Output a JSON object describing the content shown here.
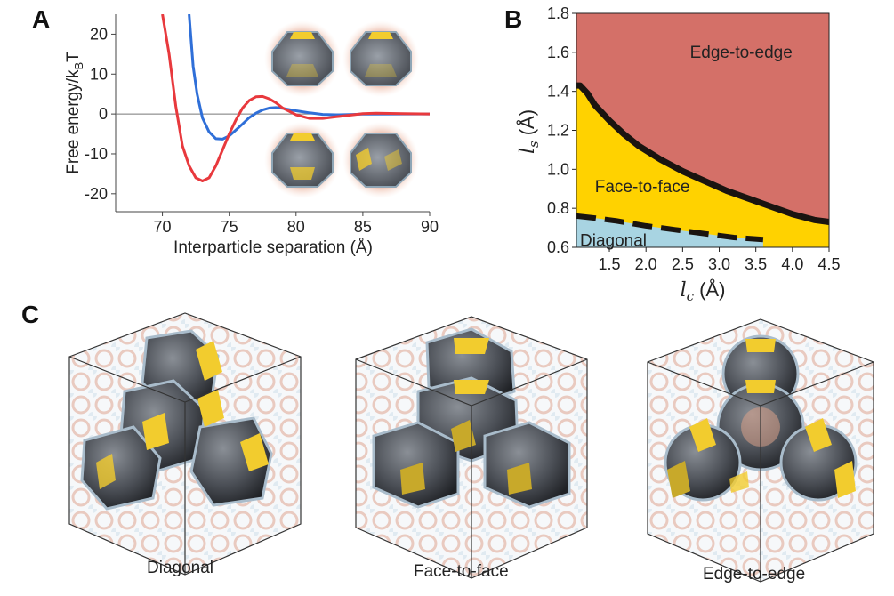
{
  "panels": {
    "a": "A",
    "b": "B",
    "c": "C"
  },
  "chart_data": [
    {
      "type": "line",
      "panel": "A",
      "xlabel": "Interparticle separation (Å)",
      "ylabel_main": "Free energy/k",
      "ylabel_sub": "B",
      "ylabel_tail": "T",
      "xlim": [
        66.5,
        90
      ],
      "ylim": [
        -24.5,
        25
      ],
      "x_ticks": [
        70,
        75,
        80,
        85,
        90
      ],
      "y_ticks": [
        20,
        10,
        0,
        -10,
        -20
      ],
      "x_tick_labels": [
        "70",
        "75",
        "80",
        "85",
        "90"
      ],
      "y_tick_labels": [
        "20",
        "10",
        "0",
        "-10",
        "-20"
      ],
      "series": [
        {
          "name": "blue",
          "color": "#2f6fd8",
          "x": [
            72.0,
            72.3,
            72.6,
            73.0,
            73.5,
            74.0,
            74.5,
            75.0,
            75.5,
            76.0,
            76.5,
            77.0,
            77.5,
            78.0,
            78.5,
            79.0,
            80.0,
            81.0,
            82.0,
            83.0,
            84.0,
            85.0,
            88.0,
            90.0
          ],
          "y": [
            25,
            12,
            5,
            -1,
            -4.5,
            -6.2,
            -6.3,
            -5.5,
            -4.0,
            -2.5,
            -0.9,
            0.2,
            1.0,
            1.5,
            1.6,
            1.4,
            0.8,
            0.3,
            -0.1,
            -0.2,
            -0.15,
            -0.05,
            0,
            0
          ]
        },
        {
          "name": "red",
          "color": "#e8393d",
          "x": [
            70.0,
            70.5,
            71.0,
            71.5,
            72.0,
            72.5,
            73.0,
            73.5,
            74.0,
            74.5,
            75.0,
            75.5,
            76.0,
            76.5,
            77.0,
            77.5,
            78.0,
            78.5,
            79.0,
            80.0,
            81.0,
            82.0,
            83.0,
            84.0,
            85.0,
            86.0,
            88.0,
            90.0
          ],
          "y": [
            25,
            15,
            2,
            -8,
            -13,
            -16,
            -16.8,
            -16,
            -13,
            -9,
            -5,
            -1.5,
            1.5,
            3.4,
            4.3,
            4.4,
            3.8,
            2.8,
            1.5,
            -0.2,
            -1.1,
            -1.1,
            -0.7,
            -0.3,
            0.1,
            0.2,
            0.1,
            0
          ]
        }
      ]
    },
    {
      "type": "area",
      "panel": "B",
      "xlabel_var": "l",
      "xlabel_sub": "c",
      "xlabel_unit": "(Å)",
      "ylabel_var": "l",
      "ylabel_sub": "s",
      "ylabel_unit": "(Å)",
      "xlim": [
        1.05,
        4.5
      ],
      "ylim": [
        0.6,
        1.8
      ],
      "x_ticks": [
        1.5,
        2.0,
        2.5,
        3.0,
        3.5,
        4.0,
        4.5
      ],
      "y_ticks": [
        0.6,
        0.8,
        1.0,
        1.2,
        1.4,
        1.6,
        1.8
      ],
      "x_tick_labels": [
        "1.5",
        "2.0",
        "2.5",
        "3.0",
        "3.5",
        "4.0",
        "4.5"
      ],
      "y_tick_labels": [
        "0.6",
        "0.8",
        "1.0",
        "1.2",
        "1.4",
        "1.6",
        "1.8"
      ],
      "regions": [
        {
          "name": "Edge-to-edge",
          "color": "#d47068",
          "label_at": [
            3.3,
            1.6
          ]
        },
        {
          "name": "Face-to-face",
          "color": "#ffd200",
          "label_at": [
            1.95,
            0.91
          ]
        },
        {
          "name": "Diagonal",
          "color": "#a8d4e2",
          "label_at": [
            1.55,
            0.635
          ]
        }
      ],
      "upper_boundary": {
        "x": [
          1.05,
          1.1,
          1.2,
          1.3,
          1.5,
          1.7,
          1.9,
          2.2,
          2.5,
          2.8,
          3.1,
          3.4,
          3.7,
          4.0,
          4.3,
          4.5
        ],
        "y": [
          1.43,
          1.43,
          1.39,
          1.33,
          1.25,
          1.18,
          1.12,
          1.05,
          0.99,
          0.94,
          0.89,
          0.85,
          0.81,
          0.77,
          0.74,
          0.73
        ]
      },
      "lower_boundary": {
        "x": [
          1.05,
          1.3,
          1.6,
          2.0,
          2.4,
          2.8,
          3.2,
          3.6
        ],
        "y": [
          0.76,
          0.75,
          0.735,
          0.71,
          0.69,
          0.67,
          0.65,
          0.64
        ]
      }
    }
  ],
  "captions": {
    "diagonal": "Diagonal",
    "face_to_face": "Face-to-face",
    "edge_to_edge": "Edge-to-edge"
  },
  "colors": {
    "facet_yellow": "#f2cc2e",
    "particle_dark": "#3a3c40",
    "halo": "#e0a890",
    "box_line": "#333333"
  }
}
